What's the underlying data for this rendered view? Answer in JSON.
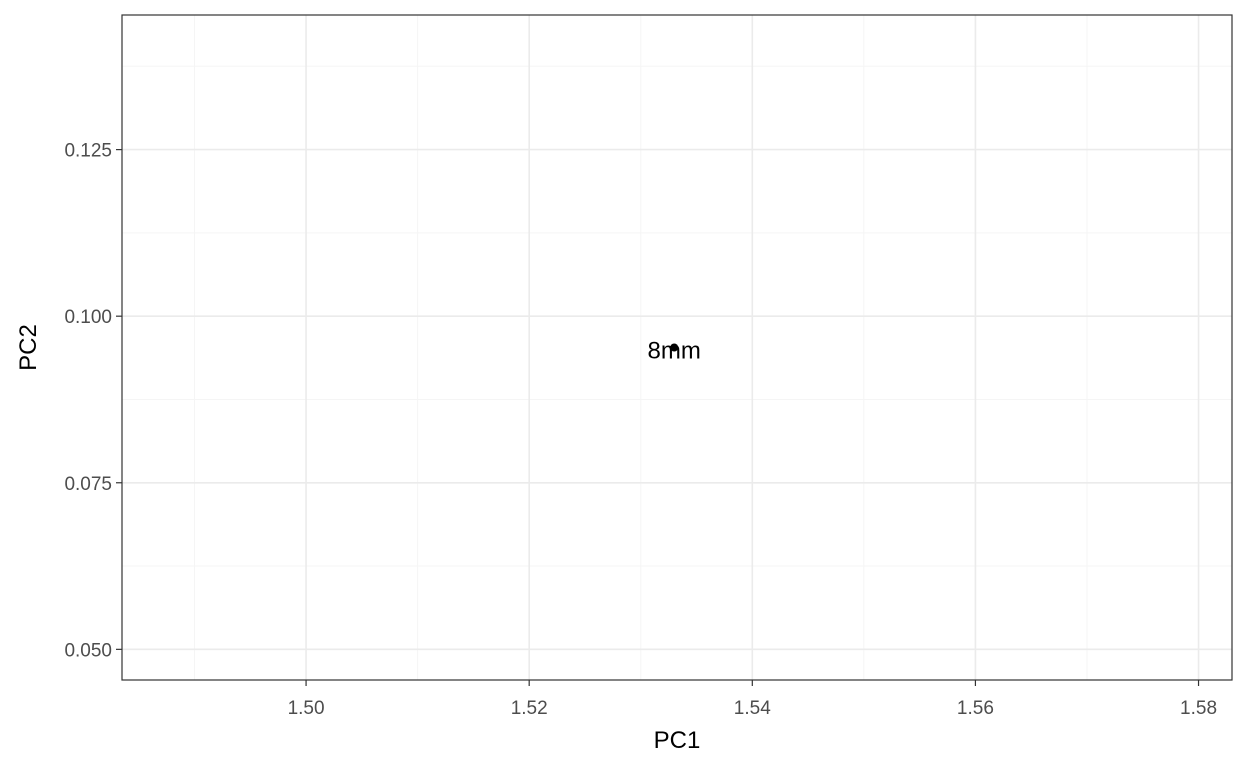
{
  "chart_data": {
    "type": "scatter",
    "title": "",
    "xlabel": "PC1",
    "ylabel": "PC2",
    "xlim": [
      1.4835,
      1.583
    ],
    "ylim": [
      0.0454,
      0.1452
    ],
    "x_ticks": [
      1.5,
      1.52,
      1.54,
      1.56,
      1.58
    ],
    "x_tick_labels": [
      "1.50",
      "1.52",
      "1.54",
      "1.56",
      "1.58"
    ],
    "x_minor_ticks": [
      1.49,
      1.51,
      1.53,
      1.55,
      1.57
    ],
    "y_ticks": [
      0.05,
      0.075,
      0.1,
      0.125
    ],
    "y_tick_labels": [
      "0.050",
      "0.075",
      "0.100",
      "0.125"
    ],
    "y_minor_ticks": [
      0.0625,
      0.0875,
      0.1125,
      0.1375
    ],
    "grid": true,
    "points": [
      {
        "x": 1.533,
        "y": 0.0953,
        "label": "8mm"
      }
    ],
    "colors": {
      "panel_border": "#333333",
      "grid_major": "#ebebeb",
      "grid_minor": "#f5f5f5",
      "point": "#000000",
      "tick_label": "#4d4d4d"
    }
  }
}
